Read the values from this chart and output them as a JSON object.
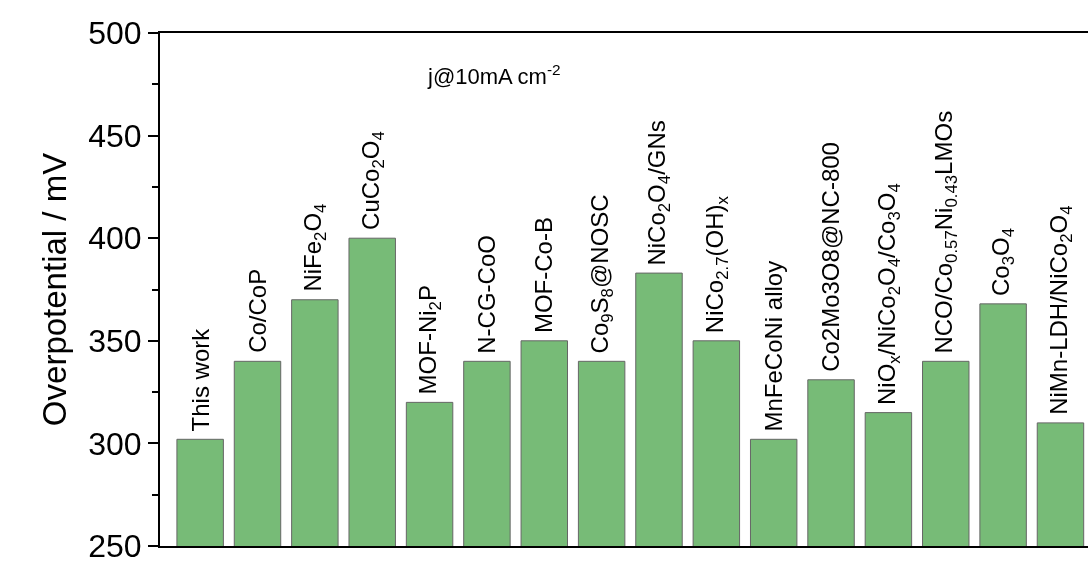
{
  "chart_data": {
    "type": "bar",
    "ylabel": "Overpotential / mV",
    "annotations": [
      "j@10mA cm$^{-2}$"
    ],
    "categories": [
      "This work",
      "Co/CoP",
      "NiFe$_{2}$O$_{4}$",
      "CuCo$_{2}$O$_{4}$",
      "MOF-Ni$_{2}$P",
      "N-CG-CoO",
      "MOF-Co-B",
      "Co$_{9}$S$_{8}$@NOSC",
      "NiCo$_{2}$O$_{4}$/GNs",
      "NiCo$_{2.7}$(OH)$_{x}$",
      "MnFeCoNi alloy",
      "Co2Mo3O8@NC-800",
      "NiO$_{x}$/NiCo$_{2}$O$_{4}$/Co$_{3}$O$_{4}$",
      "NCO/Co$_{0.57}$Ni$_{0.43}$LMOs",
      "Co$_{3}$O$_{4}$",
      "NiMn-LDH/NiCo$_{2}$O$_{4}$"
    ],
    "values": [
      302,
      340,
      370,
      400,
      320,
      340,
      350,
      340,
      383,
      350,
      302,
      331,
      315,
      340,
      368,
      310
    ],
    "color": "#77bb77",
    "ylim": [
      250,
      500
    ],
    "yticks": [
      250,
      300,
      350,
      400,
      450,
      500
    ],
    "grid": false
  }
}
